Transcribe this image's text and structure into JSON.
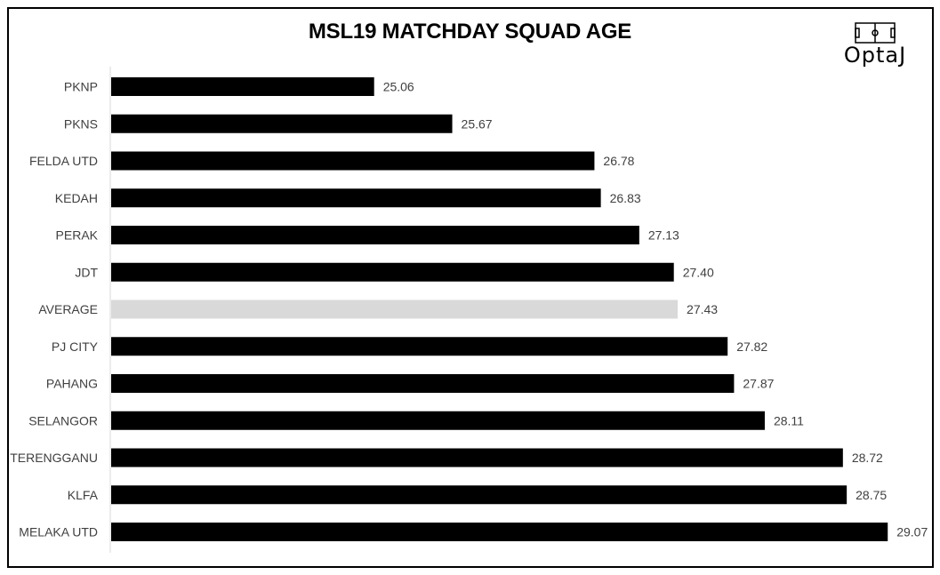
{
  "chart_data": {
    "type": "bar",
    "orientation": "horizontal",
    "title": "MSL19 MATCHDAY SQUAD AGE",
    "categories": [
      "PKNP",
      "PKNS",
      "FELDA UTD",
      "KEDAH",
      "PERAK",
      "JDT",
      "AVERAGE",
      "PJ CITY",
      "PAHANG",
      "SELANGOR",
      "TERENGGANU",
      "KLFA",
      "MELAKA UTD"
    ],
    "values": [
      25.06,
      25.67,
      26.78,
      26.83,
      27.13,
      27.4,
      27.43,
      27.82,
      27.87,
      28.11,
      28.72,
      28.75,
      29.07
    ],
    "value_labels": [
      "25.06",
      "25.67",
      "26.78",
      "26.83",
      "27.13",
      "27.40",
      "27.43",
      "27.82",
      "27.87",
      "28.11",
      "28.72",
      "28.75",
      "29.07"
    ],
    "xlim": [
      23.0,
      29.36
    ],
    "grid": false,
    "legend": "none",
    "colors": {
      "bar": "#000000",
      "highlight_bar": "#d9d9d9",
      "highlight_category": "AVERAGE",
      "axis": "#d9d9d9",
      "label": "#404040"
    }
  },
  "logo": {
    "text": "OptaJ",
    "icon": "football-pitch-icon"
  }
}
